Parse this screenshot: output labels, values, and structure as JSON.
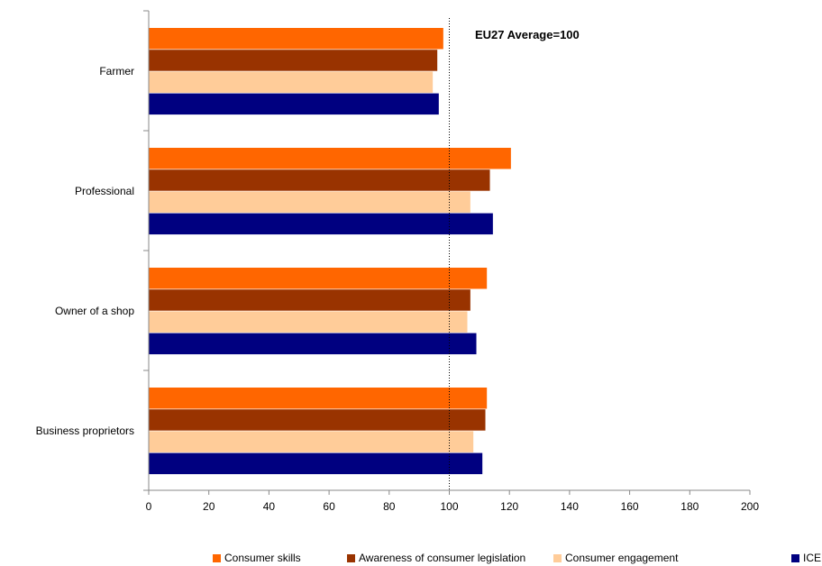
{
  "chart_data": {
    "type": "bar",
    "orientation": "horizontal",
    "categories": [
      "Farmer",
      "Professional",
      "Owner of a shop",
      "Business proprietors"
    ],
    "series": [
      {
        "name": "Consumer skills",
        "color": "#FF6600",
        "values": [
          98,
          120.5,
          112.5,
          112.5
        ]
      },
      {
        "name": "Awareness of consumer legislation",
        "color": "#993300",
        "values": [
          96,
          113.5,
          107,
          112
        ]
      },
      {
        "name": "Consumer engagement",
        "color": "#FFCC99",
        "values": [
          94.5,
          107,
          106,
          108
        ]
      },
      {
        "name": "ICE",
        "color": "#000080",
        "values": [
          96.5,
          114.5,
          109,
          111
        ]
      }
    ],
    "xlim": [
      0,
      200
    ],
    "x_ticks": [
      "0",
      "20",
      "40",
      "60",
      "80",
      "100",
      "120",
      "140",
      "160",
      "180",
      "200"
    ],
    "reference_line": {
      "value": 100,
      "style": "dotted"
    },
    "annotation": "EU27 Average=100",
    "grid": false,
    "legend_position": "bottom"
  }
}
